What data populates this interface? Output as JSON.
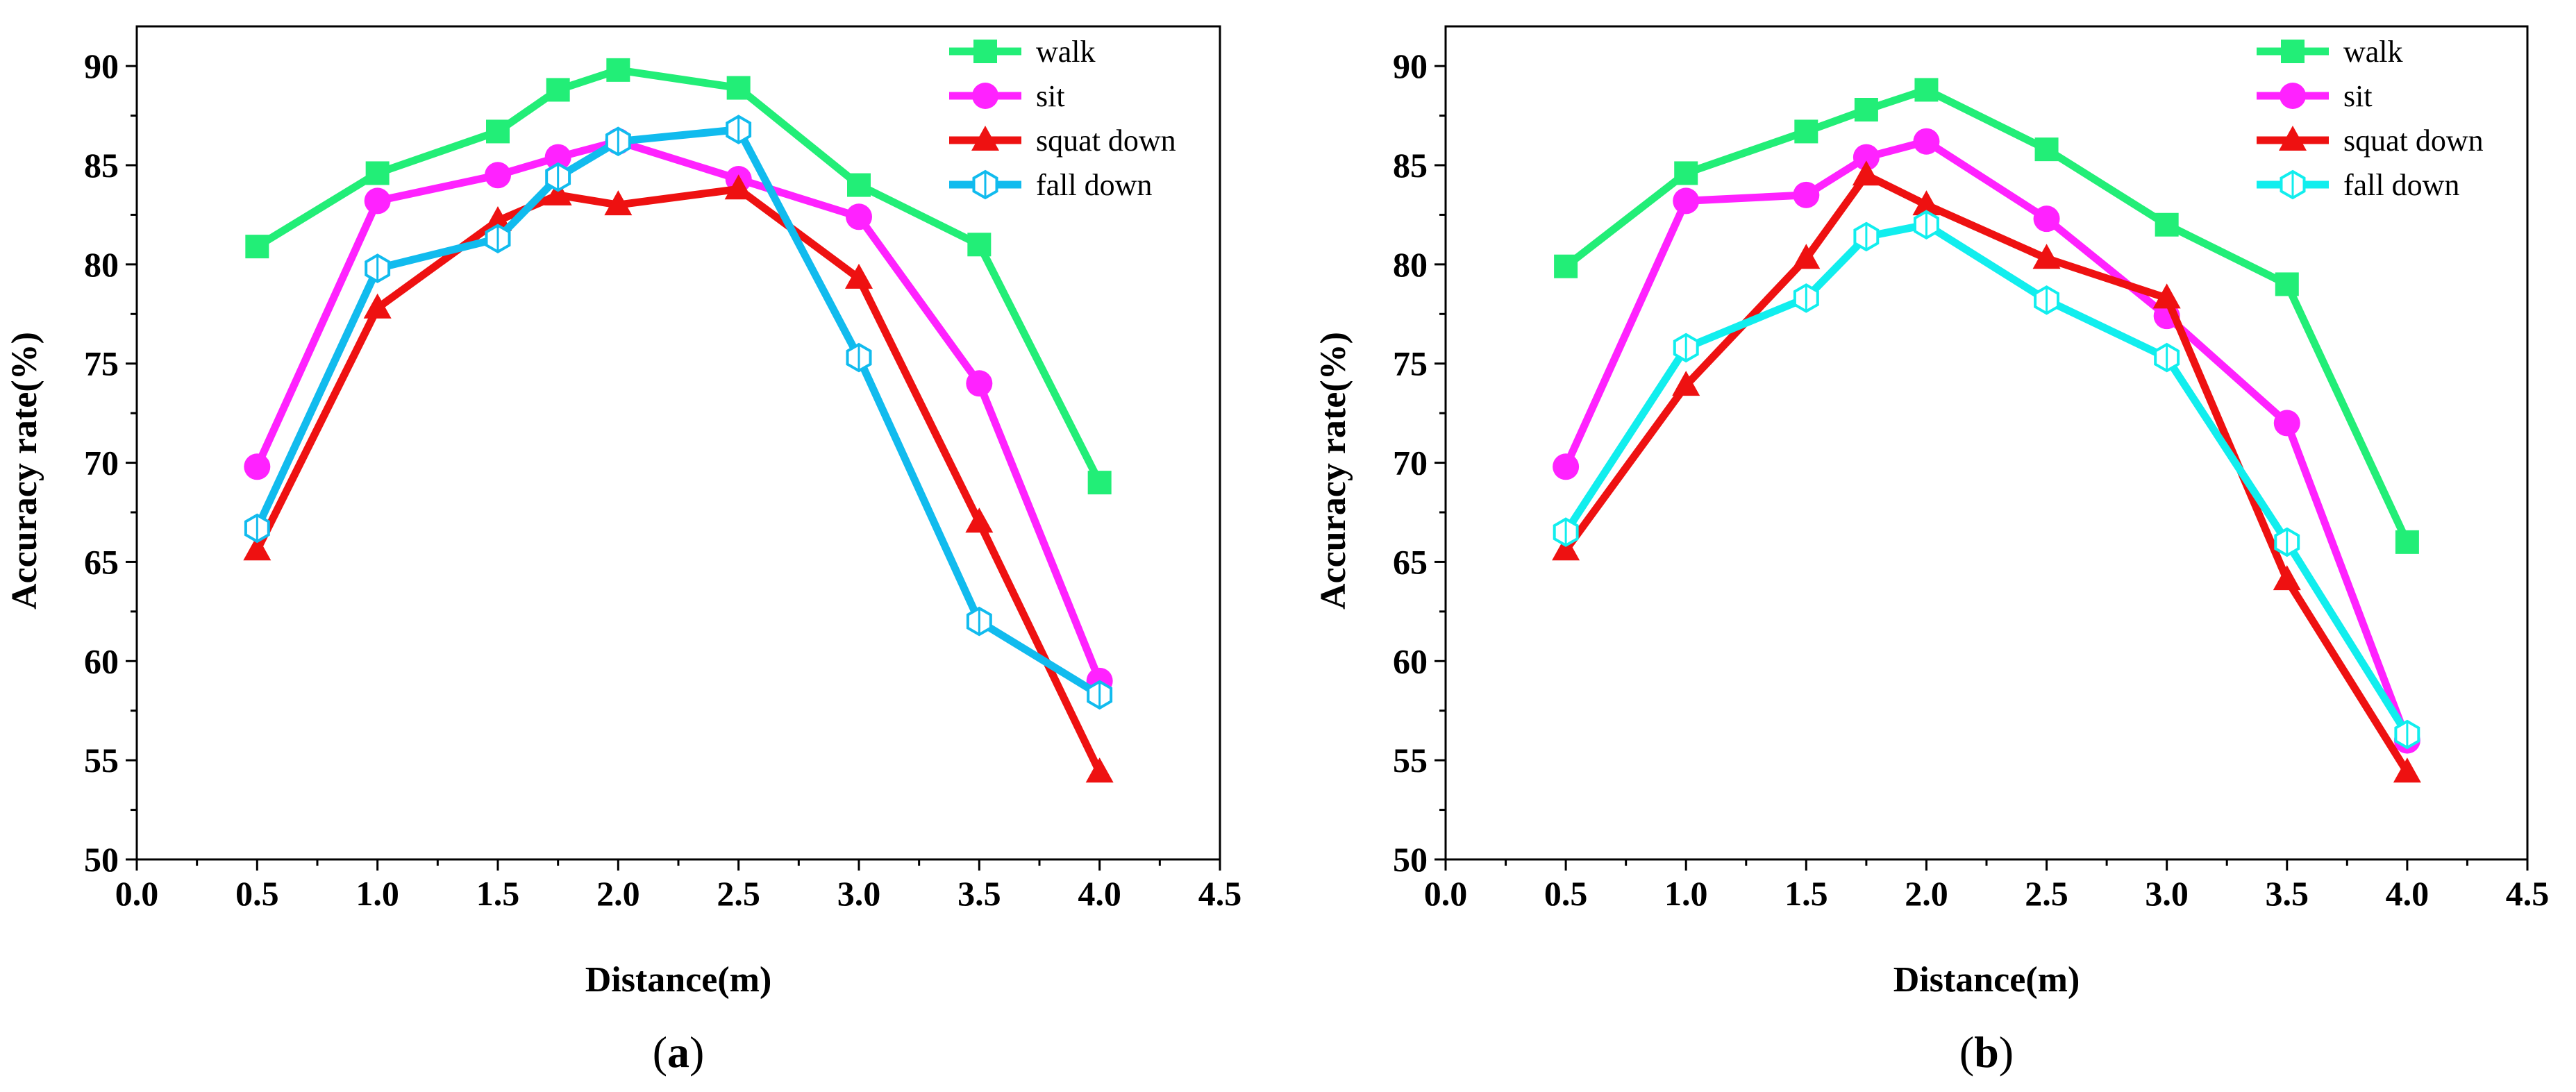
{
  "colors": {
    "walk": "#22ee77",
    "sit": "#ff22ff",
    "squat": "#ee1111",
    "fall_a": "#11bbee",
    "fall_b": "#11eeee"
  },
  "chart_data": [
    {
      "type": "line",
      "panel": "a",
      "caption_open": "(",
      "caption_letter": "a",
      "caption_close": ")",
      "xlabel": "Distance(m)",
      "ylabel": "Accuracy rate(%)",
      "xlim": [
        0.0,
        4.5
      ],
      "ylim": [
        50,
        92
      ],
      "xticks": [
        "0.0",
        "0.5",
        "1.0",
        "1.5",
        "2.0",
        "2.5",
        "3.0",
        "3.5",
        "4.0",
        "4.5"
      ],
      "yticks": [
        "50",
        "55",
        "60",
        "65",
        "70",
        "75",
        "80",
        "85",
        "90"
      ],
      "legend_position": "top-right",
      "series": [
        {
          "name": "walk",
          "marker": "square",
          "color_key": "walk",
          "x": [
            0.5,
            1.0,
            1.5,
            1.75,
            2.0,
            2.5,
            3.0,
            3.5,
            4.0
          ],
          "y": [
            80.9,
            84.6,
            86.7,
            88.8,
            89.8,
            88.9,
            84.0,
            81.0,
            69.0
          ]
        },
        {
          "name": "sit",
          "marker": "circle",
          "color_key": "sit",
          "x": [
            0.5,
            1.0,
            1.5,
            1.75,
            2.0,
            2.5,
            3.0,
            3.5,
            4.0
          ],
          "y": [
            69.8,
            83.2,
            84.5,
            85.4,
            86.2,
            84.3,
            82.4,
            74.0,
            59.0
          ]
        },
        {
          "name": "squat down",
          "marker": "triangle",
          "color_key": "squat",
          "x": [
            0.5,
            1.0,
            1.5,
            1.75,
            2.0,
            2.5,
            3.0,
            3.5,
            4.0
          ],
          "y": [
            65.6,
            77.8,
            82.2,
            83.5,
            83.0,
            83.8,
            79.3,
            67.0,
            54.4
          ]
        },
        {
          "name": "fall down",
          "marker": "hexagon",
          "color_key": "fall_a",
          "x": [
            0.5,
            1.0,
            1.5,
            1.75,
            2.0,
            2.5,
            3.0,
            3.5,
            4.0
          ],
          "y": [
            66.7,
            79.8,
            81.3,
            84.4,
            86.2,
            86.8,
            75.3,
            62.0,
            58.3
          ]
        }
      ]
    },
    {
      "type": "line",
      "panel": "b",
      "caption_open": "(",
      "caption_letter": "b",
      "caption_close": ")",
      "xlabel": "Distance(m)",
      "ylabel": "Accuracy rate(%)",
      "xlim": [
        0.0,
        4.5
      ],
      "ylim": [
        50,
        92
      ],
      "xticks": [
        "0.0",
        "0.5",
        "1.0",
        "1.5",
        "2.0",
        "2.5",
        "3.0",
        "3.5",
        "4.0",
        "4.5"
      ],
      "yticks": [
        "50",
        "55",
        "60",
        "65",
        "70",
        "75",
        "80",
        "85",
        "90"
      ],
      "legend_position": "top-right",
      "series": [
        {
          "name": "walk",
          "marker": "square",
          "color_key": "walk",
          "x": [
            0.5,
            1.0,
            1.5,
            1.75,
            2.0,
            2.5,
            3.0,
            3.5,
            4.0
          ],
          "y": [
            79.9,
            84.6,
            86.7,
            87.8,
            88.8,
            85.8,
            82.0,
            79.0,
            66.0
          ]
        },
        {
          "name": "sit",
          "marker": "circle",
          "color_key": "sit",
          "x": [
            0.5,
            1.0,
            1.5,
            1.75,
            2.0,
            2.5,
            3.0,
            3.5,
            4.0
          ],
          "y": [
            69.8,
            83.2,
            83.5,
            85.4,
            86.2,
            82.3,
            77.4,
            72.0,
            56.0
          ]
        },
        {
          "name": "squat down",
          "marker": "triangle",
          "color_key": "squat",
          "x": [
            0.5,
            1.0,
            1.5,
            1.75,
            2.0,
            2.5,
            3.0,
            3.5,
            4.0
          ],
          "y": [
            65.6,
            73.9,
            80.3,
            84.5,
            83.0,
            80.3,
            78.3,
            64.1,
            54.4
          ]
        },
        {
          "name": "fall down",
          "marker": "hexagon",
          "color_key": "fall_b",
          "x": [
            0.5,
            1.0,
            1.5,
            1.75,
            2.0,
            2.5,
            3.0,
            3.5,
            4.0
          ],
          "y": [
            66.5,
            75.8,
            78.3,
            81.4,
            82.0,
            78.2,
            75.3,
            66.0,
            56.3
          ]
        }
      ]
    }
  ]
}
